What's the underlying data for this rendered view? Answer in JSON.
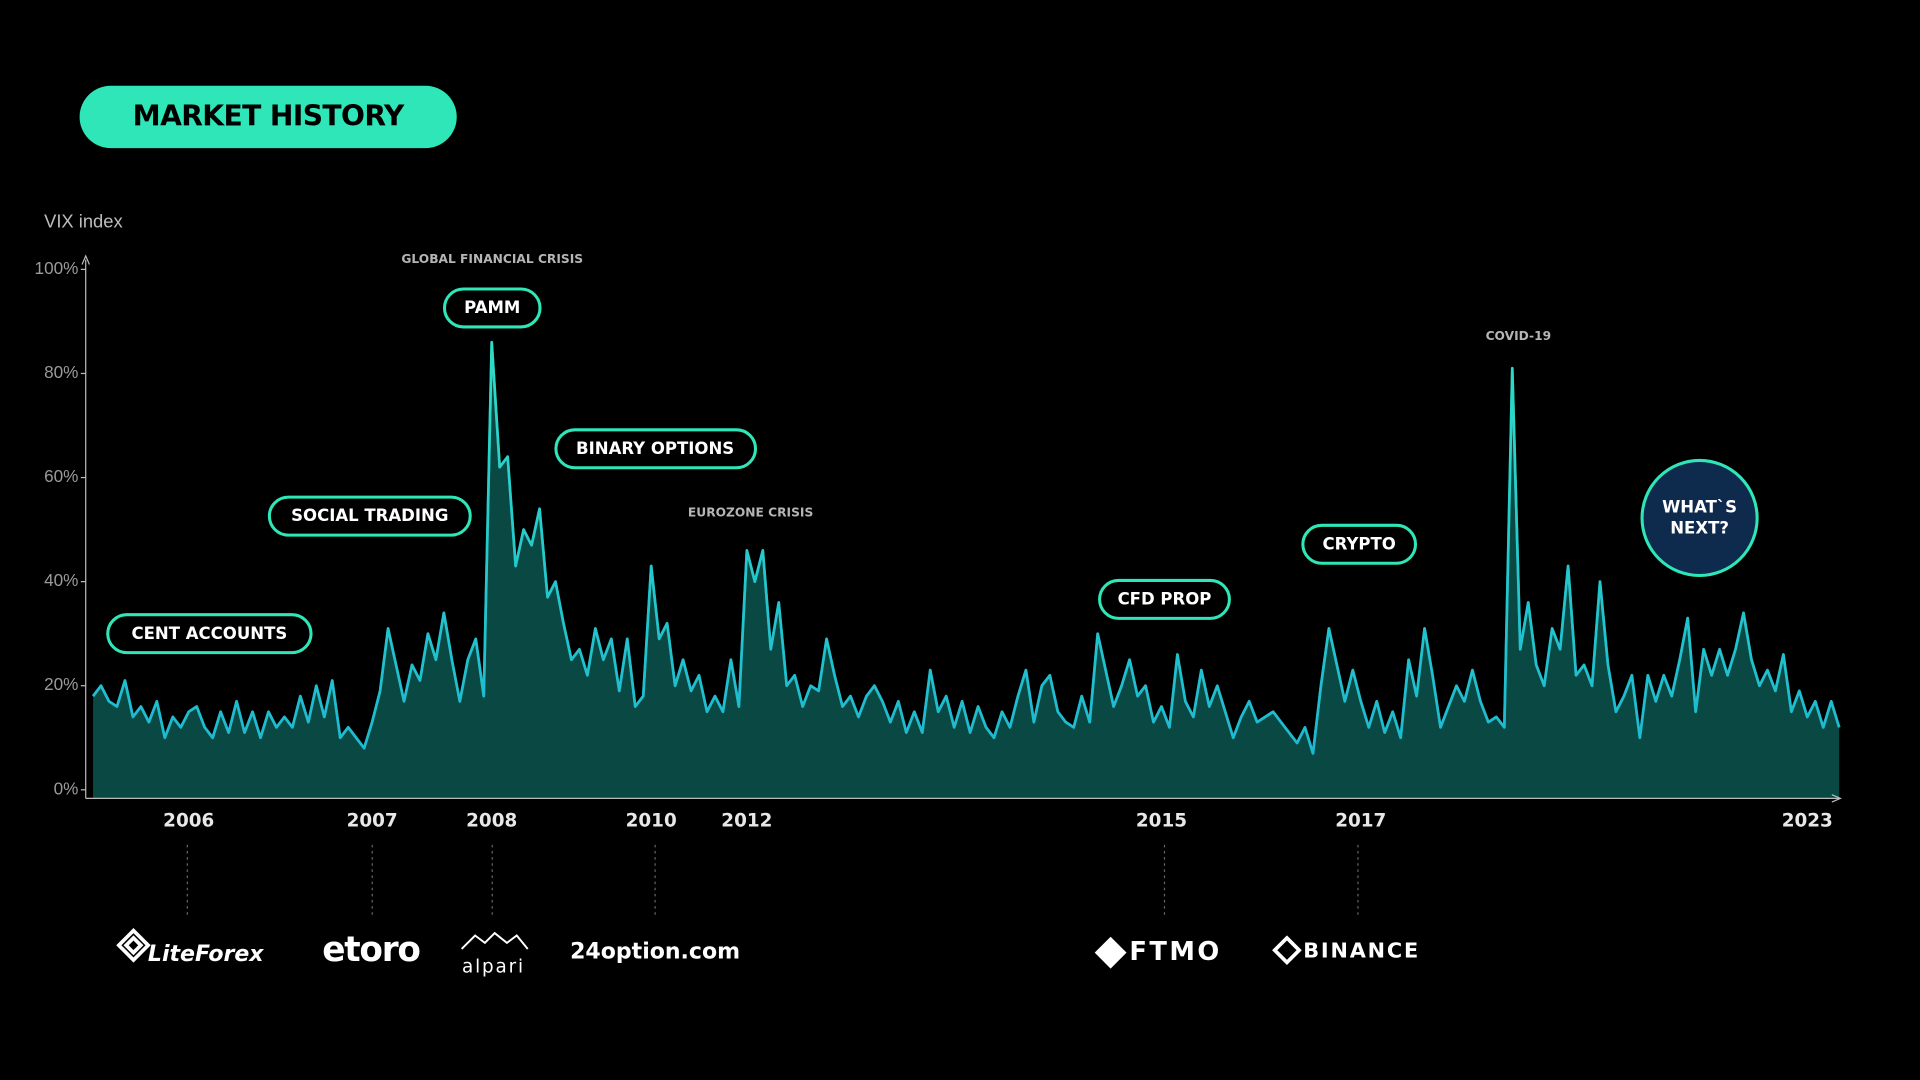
{
  "chart_data": {
    "type": "area",
    "title": "MARKET HISTORY",
    "ylabel": "VIX index",
    "ylim": [
      0,
      100
    ],
    "yticks": [
      {
        "value": 0,
        "label": "0%"
      },
      {
        "value": 20,
        "label": "20%"
      },
      {
        "value": 40,
        "label": "40%"
      },
      {
        "value": 60,
        "label": "60%"
      },
      {
        "value": 80,
        "label": "80%"
      },
      {
        "value": 100,
        "label": "100%"
      }
    ],
    "grid": false,
    "color": "#1fc9c9",
    "fill_color": "#0b4d47",
    "categories": [
      null,
      null,
      null,
      null,
      null,
      null,
      null,
      null,
      null,
      null,
      null,
      null,
      "2006",
      null,
      null,
      null,
      null,
      null,
      null,
      null,
      null,
      null,
      null,
      null,
      null,
      null,
      null,
      null,
      null,
      null,
      null,
      null,
      null,
      null,
      null,
      "2007",
      null,
      null,
      null,
      null,
      null,
      null,
      null,
      null,
      null,
      null,
      null,
      null,
      null,
      null,
      "2008",
      null,
      null,
      null,
      null,
      null,
      null,
      null,
      null,
      null,
      null,
      null,
      null,
      null,
      null,
      null,
      null,
      null,
      null,
      null,
      "2010",
      null,
      null,
      null,
      null,
      null,
      null,
      null,
      null,
      null,
      null,
      null,
      "2012",
      null,
      null,
      null,
      null,
      null,
      null,
      null,
      null,
      null,
      null,
      null,
      null,
      null,
      null,
      null,
      null,
      null,
      null,
      null,
      null,
      null,
      null,
      null,
      null,
      null,
      null,
      null,
      null,
      null,
      null,
      null,
      null,
      null,
      null,
      null,
      null,
      null,
      null,
      null,
      null,
      null,
      null,
      null,
      null,
      null,
      null,
      null,
      null,
      null,
      null,
      null,
      "2015",
      null,
      null,
      null,
      null,
      null,
      null,
      null,
      null,
      null,
      null,
      null,
      null,
      null,
      null,
      null,
      null,
      null,
      null,
      null,
      null,
      null,
      null,
      null,
      null,
      "2017",
      null,
      null,
      null,
      null,
      null,
      null,
      null,
      null,
      null,
      null,
      null,
      null,
      null,
      null,
      null,
      null,
      null,
      null,
      null,
      null,
      null,
      null,
      null,
      null,
      null,
      null,
      null,
      null,
      null,
      null,
      null,
      null,
      null,
      null,
      null,
      null,
      null,
      null,
      null,
      null,
      null,
      null,
      null,
      null,
      null,
      null,
      null,
      null,
      null,
      null,
      null,
      null,
      null,
      null,
      null,
      "2023",
      null,
      null,
      null,
      null
    ],
    "values": [
      18,
      20,
      17,
      16,
      21,
      14,
      16,
      13,
      17,
      10,
      14,
      12,
      15,
      16,
      12,
      10,
      15,
      11,
      17,
      11,
      15,
      10,
      15,
      12,
      14,
      12,
      18,
      13,
      20,
      14,
      21,
      10,
      12,
      10,
      8,
      13,
      19,
      31,
      24,
      17,
      24,
      21,
      30,
      25,
      34,
      25,
      17,
      25,
      29,
      18,
      86,
      62,
      64,
      43,
      50,
      47,
      54,
      37,
      40,
      32,
      25,
      27,
      22,
      31,
      25,
      29,
      19,
      29,
      16,
      18,
      43,
      29,
      32,
      20,
      25,
      19,
      22,
      15,
      18,
      15,
      25,
      16,
      46,
      40,
      46,
      27,
      36,
      20,
      22,
      16,
      20,
      19,
      29,
      22,
      16,
      18,
      14,
      18,
      20,
      17,
      13,
      17,
      11,
      15,
      11,
      23,
      15,
      18,
      12,
      17,
      11,
      16,
      12,
      10,
      15,
      12,
      18,
      23,
      13,
      20,
      22,
      15,
      13,
      12,
      18,
      13,
      30,
      23,
      16,
      20,
      25,
      18,
      20,
      13,
      16,
      12,
      26,
      17,
      14,
      23,
      16,
      20,
      15,
      10,
      14,
      17,
      13,
      14,
      15,
      13,
      11,
      9,
      12,
      7,
      20,
      31,
      24,
      17,
      23,
      17,
      12,
      17,
      11,
      15,
      10,
      25,
      18,
      31,
      22,
      12,
      16,
      20,
      17,
      23,
      17,
      13,
      14,
      12,
      81,
      27,
      36,
      24,
      20,
      31,
      27,
      43,
      22,
      24,
      20,
      40,
      24,
      15,
      18,
      22,
      10,
      22,
      17,
      22,
      18,
      25,
      33,
      15,
      27,
      22,
      27,
      22,
      27,
      34,
      25,
      20,
      23,
      19,
      26,
      15,
      19,
      14,
      17,
      12,
      17,
      12
    ],
    "annotations": [
      "CENT ACCOUNTS",
      "SOCIAL TRADING",
      "PAMM",
      "BINARY OPTIONS",
      "CFD PROP",
      "CRYPTO"
    ],
    "events": [
      "GLOBAL FINANCIAL CRISIS",
      "EUROZONE CRISIS",
      "COVID-19"
    ],
    "callout": [
      "WHAT`S",
      "NEXT?"
    ],
    "logos": [
      "LiteForex",
      "etoro",
      "alpari",
      "24option.com",
      "FTMO",
      "BINANCE"
    ]
  }
}
